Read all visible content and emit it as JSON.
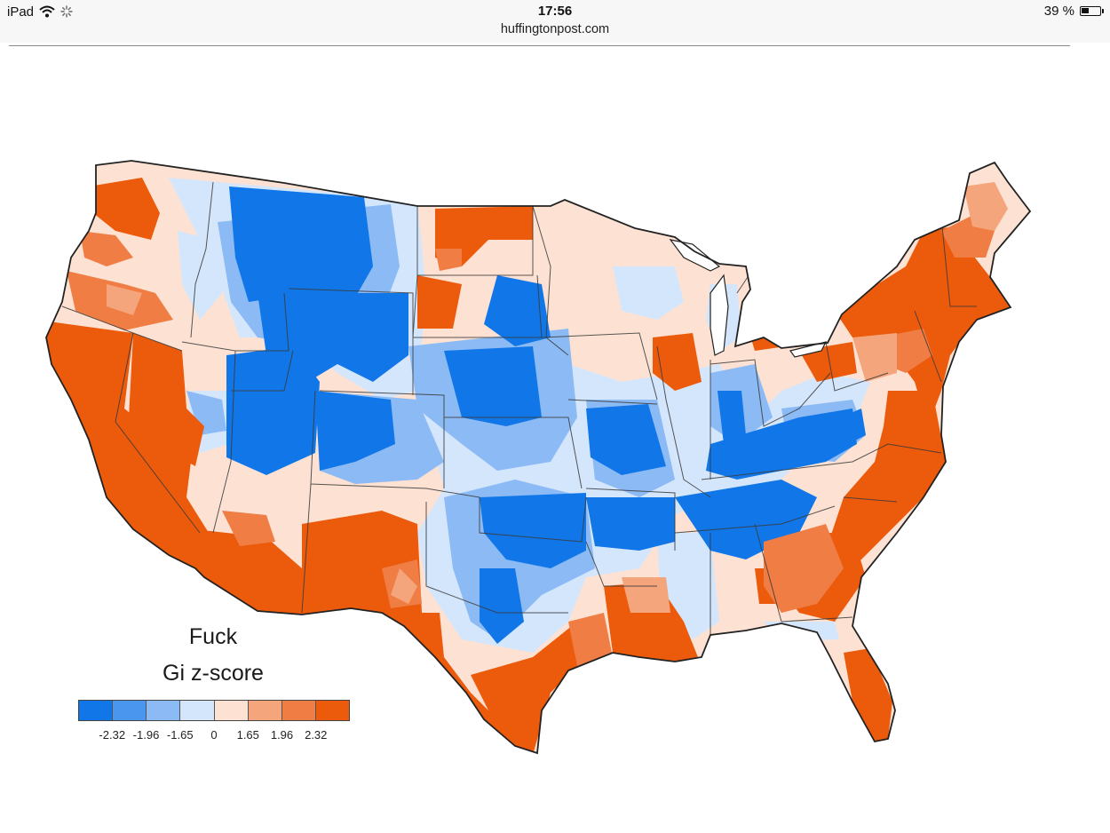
{
  "status_bar": {
    "device": "iPad",
    "time": "17:56",
    "battery": "39 %",
    "battery_fraction": 0.39,
    "icons": [
      "wifi-icon",
      "loading-spinner-icon",
      "battery-icon"
    ]
  },
  "browser": {
    "url": "huffingtonpost.com"
  },
  "map": {
    "subject": "contiguous United States",
    "legend": {
      "title_line1": "Fuck",
      "title_line2": "Gi z-score",
      "colors": [
        "#1177e8",
        "#4a96ef",
        "#8cbaf4",
        "#d4e6fc",
        "#fde2d3",
        "#f5a57c",
        "#ef7d44",
        "#ec5a0c"
      ],
      "tick_labels": [
        "-2.32",
        "-1.96",
        "-1.65",
        "0",
        "1.65",
        "1.96",
        "2.32"
      ]
    }
  }
}
